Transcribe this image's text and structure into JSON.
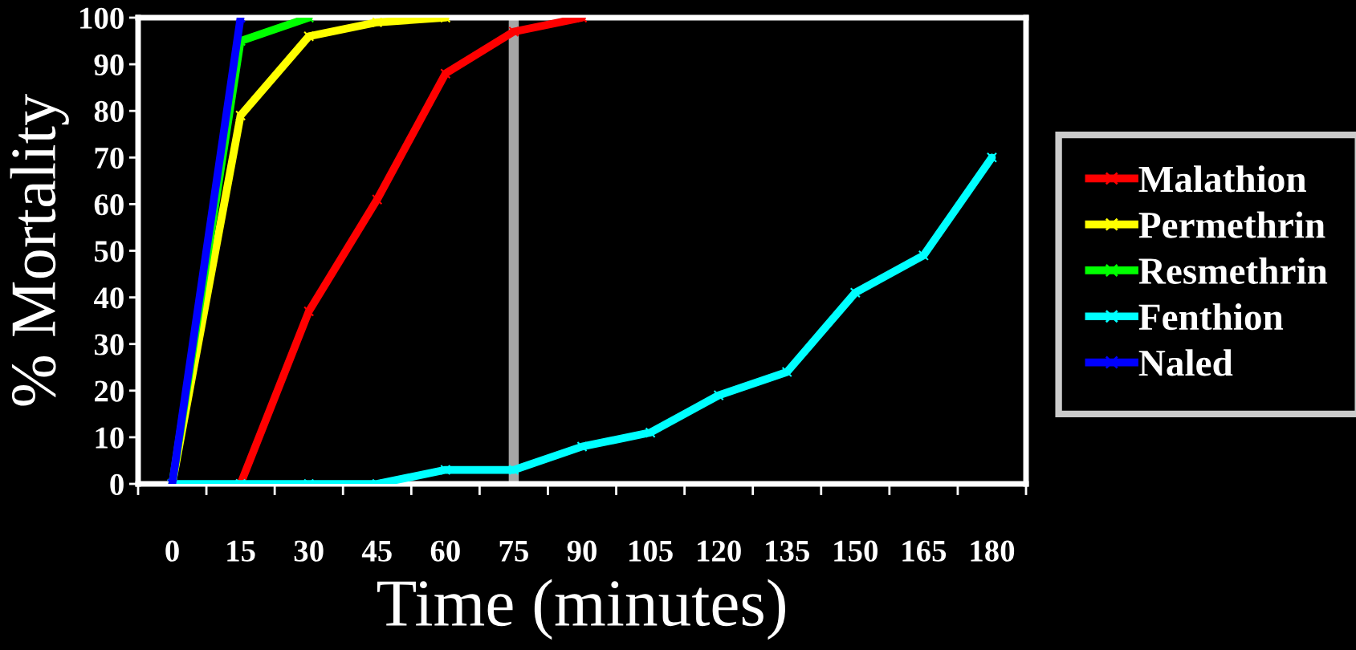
{
  "chart_data": {
    "type": "line",
    "xlabel": "Time (minutes)",
    "ylabel": "% Mortality",
    "categories": [
      "0",
      "15",
      "30",
      "45",
      "60",
      "75",
      "90",
      "105",
      "120",
      "135",
      "150",
      "165",
      "180"
    ],
    "series": [
      {
        "name": "Malathion",
        "color": "#ff0000",
        "values": [
          null,
          0,
          37,
          61,
          88,
          97,
          100,
          null,
          null,
          null,
          null,
          null,
          null
        ]
      },
      {
        "name": "Permethrin",
        "color": "#ffff00",
        "values": [
          0,
          79,
          96,
          99,
          100,
          null,
          null,
          null,
          null,
          null,
          null,
          null,
          null
        ]
      },
      {
        "name": "Resmethrin",
        "color": "#00ff00",
        "values": [
          0,
          95,
          100,
          null,
          null,
          null,
          null,
          null,
          null,
          null,
          null,
          null,
          null
        ]
      },
      {
        "name": "Fenthion",
        "color": "#00ffff",
        "values": [
          0,
          0,
          0,
          0,
          3,
          3,
          8,
          11,
          19,
          24,
          41,
          49,
          70
        ]
      },
      {
        "name": "Naled",
        "color": "#0000ff",
        "values": [
          0,
          100,
          null,
          null,
          null,
          null,
          null,
          null,
          null,
          null,
          null,
          null,
          null
        ]
      }
    ],
    "ylim": [
      0,
      100
    ],
    "yticks": [
      0,
      10,
      20,
      30,
      40,
      50,
      60,
      70,
      80,
      90,
      100
    ],
    "ref_lines": [
      {
        "axis": "x",
        "value": "75",
        "color": "#a6a6a6"
      }
    ],
    "grid": false,
    "legend": "right",
    "marker": "cross",
    "line_style": "solid"
  }
}
